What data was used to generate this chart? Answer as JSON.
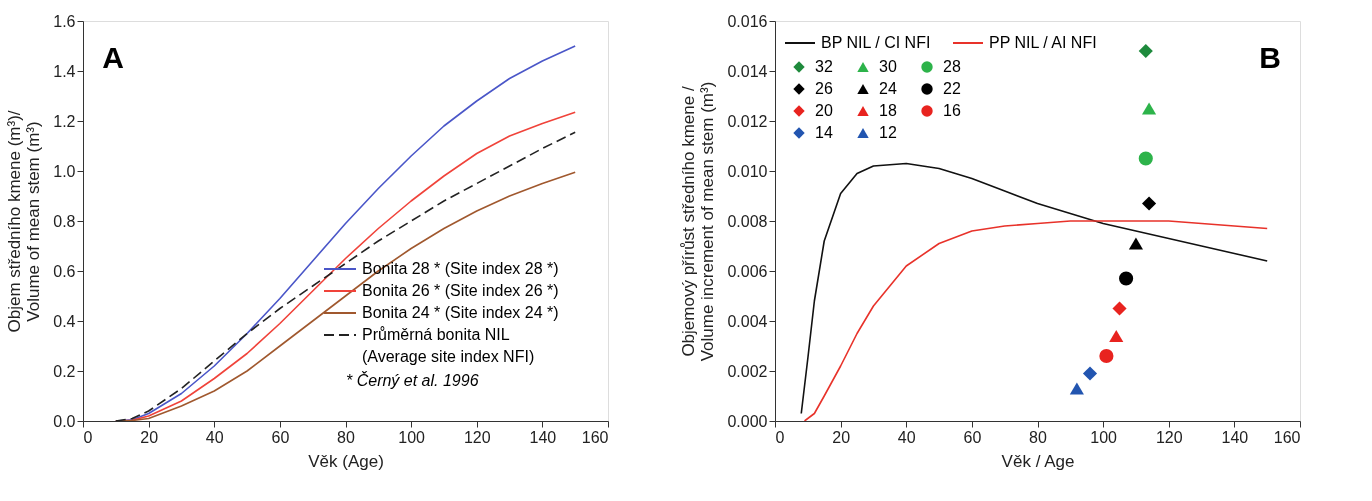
{
  "chart_data": [
    {
      "type": "line",
      "xlabel": "Věk (Age)",
      "ylabel": "Objem středního kmene (m³)/ Volume of mean stem (m³)",
      "xlim": [
        0,
        160
      ],
      "ylim": [
        0,
        1.6
      ],
      "xticks": [
        0,
        20,
        40,
        60,
        80,
        100,
        120,
        140,
        160
      ],
      "yticks": [
        {
          "value": 0,
          "label": "0.0"
        },
        {
          "value": 0.2,
          "label": "0.2"
        },
        {
          "value": 0.4,
          "label": "0.4"
        },
        {
          "value": 0.6,
          "label": "0.6"
        },
        {
          "value": 0.8,
          "label": "0.8"
        },
        {
          "value": 1.0,
          "label": "1.0"
        },
        {
          "value": 1.2,
          "label": "1.2"
        },
        {
          "value": 1.4,
          "label": "1.4"
        },
        {
          "value": 1.6,
          "label": "1.6"
        }
      ],
      "grid": false,
      "legend": "bottom right",
      "annotations": [
        "A",
        "* Černý et al. 1996"
      ],
      "x": [
        10,
        15,
        20,
        30,
        40,
        50,
        60,
        70,
        80,
        90,
        100,
        110,
        120,
        130,
        140,
        150
      ],
      "series": [
        {
          "name": "Bonita 28 * (Site index 28 *)",
          "color": "#4a56c8",
          "line_style": "solid",
          "values": [
            0,
            0.005,
            0.03,
            0.11,
            0.22,
            0.35,
            0.49,
            0.64,
            0.79,
            0.93,
            1.06,
            1.18,
            1.28,
            1.37,
            1.44,
            1.5
          ]
        },
        {
          "name": "Bonita 26 * (Site index 26 *)",
          "color": "#f0433a",
          "line_style": "solid",
          "values": [
            0,
            0.003,
            0.02,
            0.08,
            0.17,
            0.27,
            0.39,
            0.52,
            0.65,
            0.77,
            0.88,
            0.98,
            1.07,
            1.14,
            1.19,
            1.235
          ]
        },
        {
          "name": "Bonita 24 * (Site index 24 *)",
          "color": "#a0582e",
          "line_style": "solid",
          "values": [
            0,
            0.002,
            0.01,
            0.06,
            0.12,
            0.2,
            0.3,
            0.4,
            0.5,
            0.6,
            0.69,
            0.77,
            0.84,
            0.9,
            0.95,
            0.995
          ]
        },
        {
          "name": "Průměrná bonita NIL (Average site index NFI)",
          "color": "#222222",
          "line_style": "dashed",
          "values": [
            0,
            0.01,
            0.04,
            0.13,
            0.24,
            0.35,
            0.45,
            0.54,
            0.63,
            0.72,
            0.8,
            0.88,
            0.95,
            1.02,
            1.09,
            1.155
          ]
        }
      ]
    },
    {
      "type": "line",
      "xlabel": "Věk / Age",
      "ylabel": "Objemový přírůst středního kmene / Volume increment of mean stem (m³)",
      "xlim": [
        0,
        160
      ],
      "ylim": [
        0,
        0.016
      ],
      "xticks": [
        0,
        20,
        40,
        60,
        80,
        100,
        120,
        140,
        160
      ],
      "yticks": [
        {
          "value": 0,
          "label": "0.000"
        },
        {
          "value": 0.002,
          "label": "0.002"
        },
        {
          "value": 0.004,
          "label": "0.004"
        },
        {
          "value": 0.006,
          "label": "0.006"
        },
        {
          "value": 0.008,
          "label": "0.008"
        },
        {
          "value": 0.01,
          "label": "0.010"
        },
        {
          "value": 0.012,
          "label": "0.012"
        },
        {
          "value": 0.014,
          "label": "0.014"
        },
        {
          "value": 0.016,
          "label": "0.016"
        }
      ],
      "grid": false,
      "legend": "top left",
      "annotations": [
        "B"
      ],
      "series": [
        {
          "name": "BP NIL / CI NFI",
          "type": "line",
          "color": "#111111",
          "x": [
            8,
            10,
            12,
            15,
            20,
            25,
            30,
            40,
            50,
            60,
            70,
            80,
            90,
            100,
            110,
            120,
            130,
            140,
            150
          ],
          "values": [
            0.0003,
            0.0025,
            0.0048,
            0.0072,
            0.0091,
            0.0099,
            0.0102,
            0.0103,
            0.0101,
            0.0097,
            0.0092,
            0.0087,
            0.0083,
            0.0079,
            0.0076,
            0.0073,
            0.007,
            0.0067,
            0.0064
          ]
        },
        {
          "name": "PP NIL / AI NFI",
          "type": "line",
          "color": "#e8322a",
          "x": [
            9,
            12,
            15,
            20,
            25,
            30,
            40,
            50,
            60,
            70,
            80,
            90,
            100,
            110,
            120,
            130,
            140,
            150
          ],
          "values": [
            0,
            0.0003,
            0.001,
            0.0022,
            0.0035,
            0.0046,
            0.0062,
            0.0071,
            0.0076,
            0.0078,
            0.0079,
            0.008,
            0.008,
            0.008,
            0.008,
            0.0079,
            0.0078,
            0.0077
          ]
        },
        {
          "name": "32",
          "type": "scatter",
          "marker": "diamond",
          "color": "#1e8a3c",
          "x": [
            113
          ],
          "values": [
            0.0148
          ]
        },
        {
          "name": "30",
          "type": "scatter",
          "marker": "triangle",
          "color": "#2db34a",
          "x": [
            114
          ],
          "values": [
            0.0125
          ]
        },
        {
          "name": "28",
          "type": "scatter",
          "marker": "circle",
          "color": "#2db34a",
          "x": [
            113
          ],
          "values": [
            0.0105
          ]
        },
        {
          "name": "26",
          "type": "scatter",
          "marker": "diamond",
          "color": "#000000",
          "x": [
            114
          ],
          "values": [
            0.0087
          ]
        },
        {
          "name": "24",
          "type": "scatter",
          "marker": "triangle",
          "color": "#000000",
          "x": [
            110
          ],
          "values": [
            0.0071
          ]
        },
        {
          "name": "22",
          "type": "scatter",
          "marker": "circle",
          "color": "#000000",
          "x": [
            107
          ],
          "values": [
            0.0057
          ]
        },
        {
          "name": "20",
          "type": "scatter",
          "marker": "diamond",
          "color": "#e8231f",
          "x": [
            105
          ],
          "values": [
            0.0045
          ]
        },
        {
          "name": "18",
          "type": "scatter",
          "marker": "triangle",
          "color": "#e8231f",
          "x": [
            104
          ],
          "values": [
            0.0034
          ]
        },
        {
          "name": "16",
          "type": "scatter",
          "marker": "circle",
          "color": "#e8231f",
          "x": [
            101
          ],
          "values": [
            0.0026
          ]
        },
        {
          "name": "14",
          "type": "scatter",
          "marker": "diamond",
          "color": "#2255b0",
          "x": [
            96
          ],
          "values": [
            0.0019
          ]
        },
        {
          "name": "12",
          "type": "scatter",
          "marker": "triangle",
          "color": "#2255b0",
          "x": [
            92
          ],
          "values": [
            0.0013
          ]
        }
      ]
    }
  ]
}
